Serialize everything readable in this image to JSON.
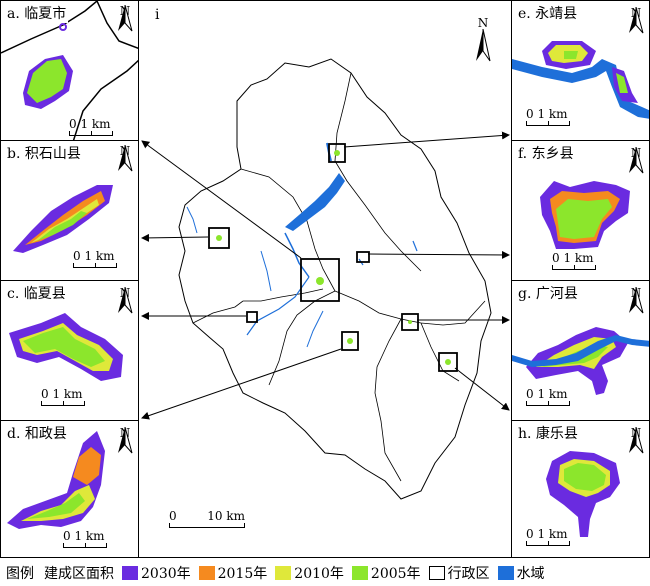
{
  "colors": {
    "y2030": "#6a2be0",
    "y2015": "#f58a1f",
    "y2010": "#dfe83a",
    "y2005": "#8ce62c",
    "water": "#1e6fd9",
    "admin": "#000000"
  },
  "main": {
    "label": "i",
    "north": "N",
    "scale_left": "0",
    "scale_right": "10 km"
  },
  "panels": [
    {
      "label": "a. 临夏市",
      "north": "N",
      "scale": "0 1 km"
    },
    {
      "label": "b. 积石山县",
      "north": "N",
      "scale": "0 1 km"
    },
    {
      "label": "c. 临夏县",
      "north": "N",
      "scale": "0 1 km"
    },
    {
      "label": "d. 和政县",
      "north": "N",
      "scale": "0 1 km"
    },
    {
      "label": "e. 永靖县",
      "north": "N",
      "scale": "0 1 km"
    },
    {
      "label": "f. 东乡县",
      "north": "N",
      "scale": "0 1 km"
    },
    {
      "label": "g. 广河县",
      "north": "N",
      "scale": "0 1 km"
    },
    {
      "label": "h. 康乐县",
      "north": "N",
      "scale": "0 1 km"
    }
  ],
  "legend": {
    "title": "图例",
    "subtitle": "建成区面积",
    "items": [
      "2030年",
      "2015年",
      "2010年",
      "2005年",
      "行政区",
      "水域"
    ]
  }
}
